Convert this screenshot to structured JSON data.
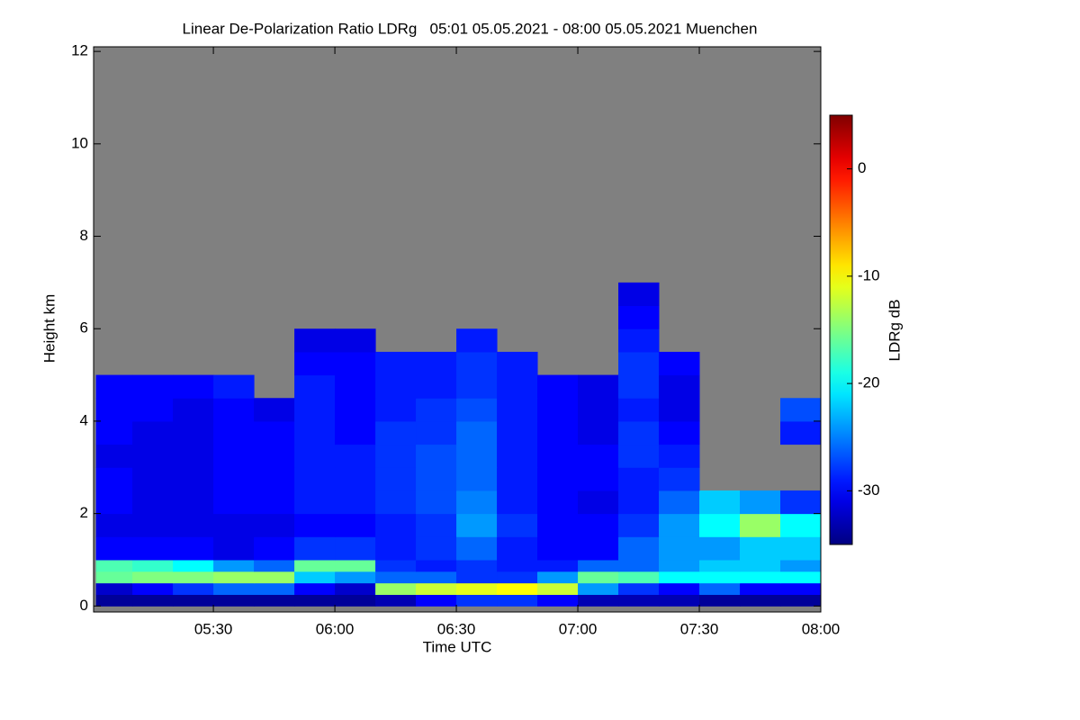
{
  "chart_data": {
    "type": "heatmap",
    "title": "Linear De-Polarization Ratio LDRg   05:01 05.05.2021 - 08:00 05.05.2021 Muenchen",
    "xlabel": "Time UTC",
    "ylabel": "Height km",
    "colorbar_label": "LDRg dB",
    "xlim": [
      5.007,
      8.0
    ],
    "ylim": [
      -0.13,
      12.1
    ],
    "xticks": [
      {
        "value": 5.5,
        "label": "05:30"
      },
      {
        "value": 6.0,
        "label": "06:00"
      },
      {
        "value": 6.5,
        "label": "06:30"
      },
      {
        "value": 7.0,
        "label": "07:00"
      },
      {
        "value": 7.5,
        "label": "07:30"
      },
      {
        "value": 8.0,
        "label": "08:00"
      }
    ],
    "yticks": [
      0,
      2,
      4,
      6,
      8,
      10,
      12
    ],
    "clim": [
      -35,
      5
    ],
    "cticks": [
      0,
      -10,
      -20,
      -30
    ],
    "colormap": "jet",
    "null_color": "#808080",
    "x_edges": [
      5.0167,
      5.1667,
      5.3333,
      5.5,
      5.6667,
      5.8333,
      6.0,
      6.1667,
      6.3333,
      6.5,
      6.6667,
      6.8333,
      7.0,
      7.1667,
      7.3333,
      7.5,
      7.6667,
      7.8333,
      8.0
    ],
    "y_edges": [
      0,
      0.25,
      0.5,
      0.75,
      1,
      1.5,
      2,
      2.5,
      3,
      3.5,
      4,
      4.5,
      5,
      5.5,
      6,
      6.5,
      7
    ],
    "z": [
      [
        -34,
        -34,
        -34,
        -34,
        -34,
        -34,
        -34,
        -33,
        -30,
        -28,
        -28,
        -30,
        -33,
        -33,
        -33,
        -34,
        -34,
        -34
      ],
      [
        -32,
        -30,
        -28,
        -26,
        -26,
        -30,
        -32,
        -14,
        -12,
        -11,
        -10,
        -12,
        -24,
        -28,
        -30,
        -26,
        -30,
        -30
      ],
      [
        -16,
        -15,
        -15,
        -14,
        -14,
        -22,
        -24,
        -26,
        -26,
        -28,
        -28,
        -24,
        -16,
        -17,
        -20,
        -20,
        -20,
        -20
      ],
      [
        -17,
        -18,
        -20,
        -24,
        -26,
        -16,
        -16,
        -28,
        -29,
        -28,
        -29,
        -29,
        -26,
        -26,
        -24,
        -22,
        -22,
        -24
      ],
      [
        -30,
        -30,
        -30,
        -31,
        -30,
        -28,
        -28,
        -29,
        -28,
        -26,
        -29,
        -30,
        -30,
        -26,
        -24,
        -24,
        -22,
        -22
      ],
      [
        -31,
        -31,
        -31,
        -31,
        -31,
        -30,
        -30,
        -29,
        -28,
        -24,
        -28,
        -30,
        -30,
        -28,
        -24,
        -20,
        -14,
        -20
      ],
      [
        -30,
        -31,
        -31,
        -30,
        -30,
        -29,
        -29,
        -28,
        -27,
        -25,
        -29,
        -30,
        -31,
        -29,
        -26,
        -22,
        -24,
        -28
      ],
      [
        -30,
        -31,
        -31,
        -30,
        -30,
        -29,
        -29,
        -28,
        -27,
        -26,
        -29,
        -30,
        -30,
        -29,
        -28,
        null,
        null,
        null
      ],
      [
        -31,
        -31,
        -31,
        -30,
        -30,
        -29,
        -29,
        -28,
        -27,
        -26,
        -29,
        -30,
        -30,
        -28,
        -29,
        null,
        null,
        null
      ],
      [
        -30,
        -31,
        -31,
        -30,
        -30,
        -29,
        -30,
        -28,
        -28,
        -26,
        -29,
        -30,
        -31,
        -28,
        -30,
        null,
        null,
        -29
      ],
      [
        -30,
        -30,
        -31,
        -30,
        -31,
        -29,
        -30,
        -29,
        -28,
        -27,
        -29,
        -30,
        -31,
        -29,
        -31,
        null,
        null,
        -27
      ],
      [
        -30,
        -30,
        -30,
        -29,
        null,
        -29,
        -30,
        -29,
        -29,
        -28,
        -29,
        -30,
        -31,
        -28,
        -31,
        null,
        null,
        null
      ],
      [
        null,
        null,
        null,
        null,
        null,
        -30,
        -30,
        -29,
        -29,
        -28,
        -29,
        null,
        null,
        -28,
        -30,
        null,
        null,
        null
      ],
      [
        null,
        null,
        null,
        null,
        null,
        -31,
        -31,
        null,
        null,
        -29,
        null,
        null,
        null,
        -29,
        null,
        null,
        null,
        null
      ],
      [
        null,
        null,
        null,
        null,
        null,
        null,
        null,
        null,
        null,
        null,
        null,
        null,
        null,
        -30,
        null,
        null,
        null,
        null
      ],
      [
        null,
        null,
        null,
        null,
        null,
        null,
        null,
        null,
        null,
        null,
        null,
        null,
        null,
        -31,
        null,
        null,
        null,
        null
      ]
    ]
  }
}
